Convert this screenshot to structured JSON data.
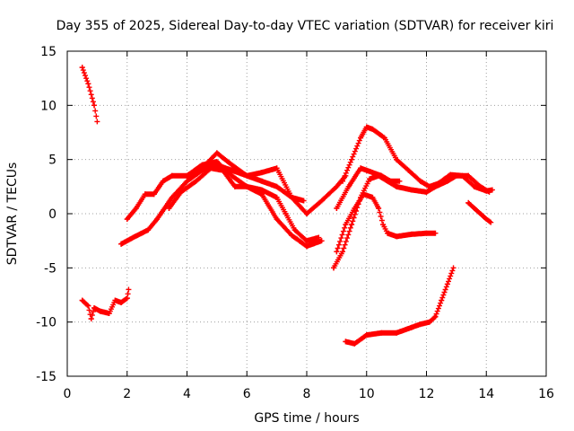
{
  "chart_data": {
    "type": "scatter",
    "title": "Day 355 of 2025, Sidereal Day-to-day VTEC variation (SDTVAR) for receiver kiri",
    "xlabel": "GPS time / hours",
    "ylabel": "SDTVAR / TECUs",
    "xlim": [
      0,
      16
    ],
    "ylim": [
      -15,
      15
    ],
    "xticks": [
      0,
      2,
      4,
      6,
      8,
      10,
      12,
      14,
      16
    ],
    "yticks": [
      -15,
      -10,
      -5,
      0,
      5,
      10,
      15
    ],
    "xtick_labels": [
      "0",
      "2",
      "4",
      "6",
      "8",
      "10",
      "12",
      "14",
      "16"
    ],
    "ytick_labels": [
      "-15",
      "-10",
      "-5",
      "0",
      "5",
      "10",
      "15"
    ],
    "grid": true,
    "marker": "+",
    "color": "#ff0000",
    "series": [
      {
        "name": "s1",
        "x": [
          0.5,
          0.7,
          0.9,
          1.0
        ],
        "y": [
          13.5,
          12.0,
          10.0,
          8.5
        ]
      },
      {
        "name": "s2",
        "x": [
          0.5,
          0.7,
          0.8,
          0.9,
          1.1,
          1.4,
          1.6,
          1.8,
          2.0,
          2.05
        ],
        "y": [
          -8.0,
          -8.5,
          -9.7,
          -8.7,
          -9.0,
          -9.2,
          -8.0,
          -8.2,
          -7.8,
          -7.0
        ]
      },
      {
        "name": "s3",
        "x": [
          2.0,
          2.3,
          2.6,
          2.9,
          3.2,
          3.5,
          4.0,
          4.5,
          5.0,
          5.5,
          6.0,
          6.5,
          7.0,
          7.5,
          7.9
        ],
        "y": [
          -0.5,
          0.5,
          1.8,
          1.8,
          3.0,
          3.5,
          3.5,
          4.2,
          5.6,
          4.5,
          3.5,
          3.0,
          2.5,
          1.5,
          1.2
        ]
      },
      {
        "name": "s4",
        "x": [
          1.8,
          2.2,
          2.7,
          3.0,
          3.5,
          4.0,
          4.5,
          5.0,
          5.5,
          6.0,
          6.5,
          7.0,
          7.5,
          8.0,
          8.5,
          9.0,
          9.3
        ],
        "y": [
          -2.8,
          -2.2,
          -1.5,
          -0.5,
          1.5,
          3.0,
          4.0,
          4.5,
          4.0,
          3.5,
          3.8,
          4.2,
          1.5,
          0.0,
          1.2,
          2.5,
          3.5
        ]
      },
      {
        "name": "s5",
        "x": [
          3.4,
          3.8,
          4.3,
          4.8,
          5.2,
          5.6,
          6.0,
          6.5,
          7.0,
          7.3,
          7.6,
          8.0,
          8.4
        ],
        "y": [
          0.5,
          2.0,
          3.0,
          4.2,
          4.0,
          2.5,
          2.5,
          2.2,
          1.5,
          0.0,
          -1.5,
          -2.5,
          -2.2
        ]
      },
      {
        "name": "s6",
        "x": [
          4.0,
          4.5,
          5.0,
          5.5,
          6.0,
          6.5,
          7.0,
          7.5,
          8.0,
          8.5
        ],
        "y": [
          3.5,
          4.5,
          4.8,
          3.5,
          2.5,
          1.8,
          -0.5,
          -2.0,
          -3.0,
          -2.5
        ]
      },
      {
        "name": "s7",
        "x": [
          9.0,
          9.3,
          9.6,
          9.9,
          10.2,
          10.4,
          10.55,
          10.7,
          11.0,
          11.5,
          12.0,
          12.3
        ],
        "y": [
          -3.5,
          -1.0,
          0.5,
          1.8,
          1.5,
          0.5,
          -1.0,
          -1.8,
          -2.1,
          -1.9,
          -1.8,
          -1.8
        ]
      },
      {
        "name": "s8",
        "x": [
          8.9,
          9.2,
          9.5,
          9.8,
          10.1,
          10.4,
          10.7,
          11.0,
          11.5,
          12.0,
          12.3,
          12.7,
          13.0,
          13.4,
          13.8,
          14.1
        ],
        "y": [
          -5.0,
          -3.5,
          -1.0,
          1.5,
          3.2,
          3.5,
          3.0,
          2.5,
          2.2,
          2.0,
          2.5,
          3.0,
          3.5,
          3.5,
          2.5,
          2.0
        ]
      },
      {
        "name": "s9",
        "x": [
          9.0,
          9.4,
          9.8,
          10.0,
          10.2,
          10.5,
          10.8,
          11.1
        ],
        "y": [
          0.5,
          2.5,
          4.2,
          4.0,
          3.8,
          3.5,
          3.0,
          3.0
        ]
      },
      {
        "name": "s10",
        "x": [
          9.2,
          9.5,
          9.8,
          10.0,
          10.2,
          10.6,
          11.0,
          11.4,
          11.8,
          12.1,
          12.4,
          12.8,
          13.2,
          13.6,
          14.0,
          14.2
        ],
        "y": [
          3.0,
          5.0,
          7.0,
          8.0,
          7.8,
          7.0,
          5.0,
          4.0,
          3.0,
          2.5,
          2.8,
          3.6,
          3.5,
          2.5,
          2.1,
          2.2
        ]
      },
      {
        "name": "s11",
        "x": [
          13.4,
          13.6,
          13.8,
          14.0,
          14.15
        ],
        "y": [
          1.0,
          0.5,
          0.0,
          -0.5,
          -0.8
        ]
      },
      {
        "name": "s12",
        "x": [
          9.3,
          9.6,
          10.0,
          10.5,
          11.0,
          11.5,
          11.8,
          12.1,
          12.3,
          12.5,
          12.7,
          12.9
        ],
        "y": [
          -11.8,
          -12.0,
          -11.2,
          -11.0,
          -11.0,
          -10.5,
          -10.2,
          -10.0,
          -9.5,
          -8.0,
          -6.5,
          -5.0
        ]
      }
    ]
  }
}
